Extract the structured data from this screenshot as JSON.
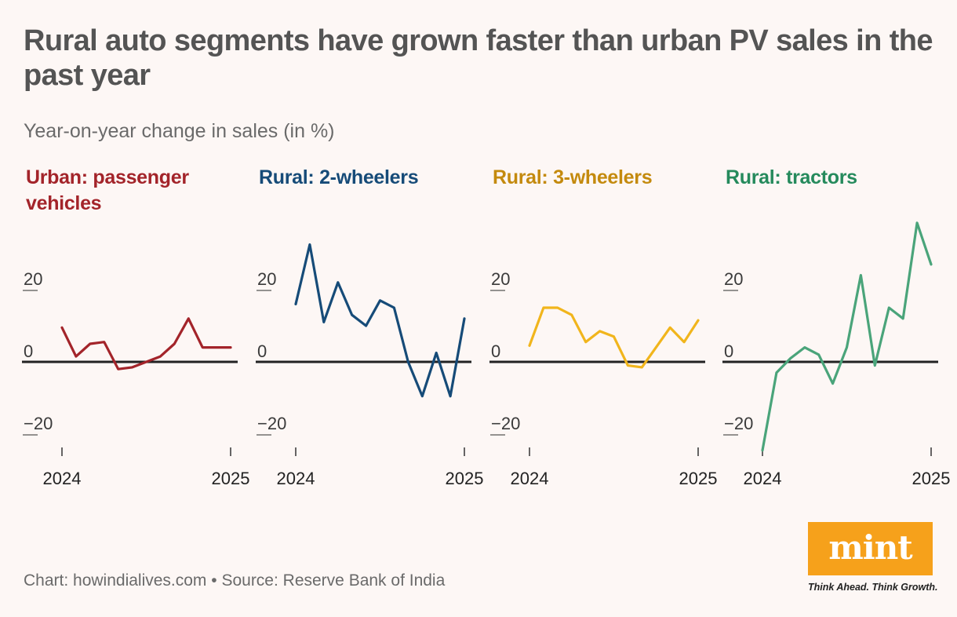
{
  "title": "Rural auto segments have grown faster than urban PV sales in the past year",
  "subtitle": "Year-on-year change in sales (in %)",
  "source": "Chart: howindialives.com • Source: Reserve Bank of India",
  "logo": {
    "text": "mint",
    "tagline": "Think Ahead. Think Growth.",
    "color": "#f6a11b"
  },
  "chart_data": [
    {
      "type": "line",
      "title": "Urban: passenger vehicles",
      "color": "#a3242a",
      "x_labels": [
        "2024",
        "2025"
      ],
      "y_ticks": [
        20,
        0,
        -20
      ],
      "y_tick_labels": [
        "20",
        "0",
        "−20"
      ],
      "ylim": [
        -25,
        38
      ],
      "values": [
        9.5,
        1.5,
        5.0,
        5.5,
        -2.0,
        -1.5,
        0.0,
        1.5,
        5.0,
        12.0,
        4.0,
        4.0,
        4.0
      ]
    },
    {
      "type": "line",
      "title": "Rural: 2-wheelers",
      "color": "#164b78",
      "x_labels": [
        "2024",
        "2025"
      ],
      "y_ticks": [
        20,
        0,
        -20
      ],
      "y_tick_labels": [
        "20",
        "0",
        "−20"
      ],
      "ylim": [
        -25,
        38
      ],
      "values": [
        16.0,
        32.5,
        11.0,
        22.0,
        13.0,
        10.0,
        17.0,
        15.0,
        0.0,
        -9.5,
        2.5,
        -9.5,
        12.0
      ]
    },
    {
      "type": "line",
      "title": "Rural: 3-wheelers",
      "color": "#f1b51c",
      "label_color": "#c48a0e",
      "x_labels": [
        "2024",
        "2025"
      ],
      "y_ticks": [
        20,
        0,
        -20
      ],
      "y_tick_labels": [
        "20",
        "0",
        "−20"
      ],
      "ylim": [
        -25,
        38
      ],
      "values": [
        4.5,
        15.0,
        15.0,
        13.0,
        5.5,
        8.5,
        7.0,
        -1.0,
        -1.5,
        4.0,
        9.5,
        5.5,
        11.5
      ]
    },
    {
      "type": "line",
      "title": "Rural: tractors",
      "color": "#4aa47a",
      "label_color": "#258a5c",
      "x_labels": [
        "2024",
        "2025"
      ],
      "y_ticks": [
        20,
        0,
        -20
      ],
      "y_tick_labels": [
        "20",
        "0",
        "−20"
      ],
      "ylim": [
        -25,
        38
      ],
      "values": [
        -24.5,
        -3.0,
        1.0,
        4.0,
        2.0,
        -6.0,
        4.0,
        24.0,
        -1.0,
        15.0,
        12.0,
        38.5,
        27.0
      ]
    }
  ]
}
